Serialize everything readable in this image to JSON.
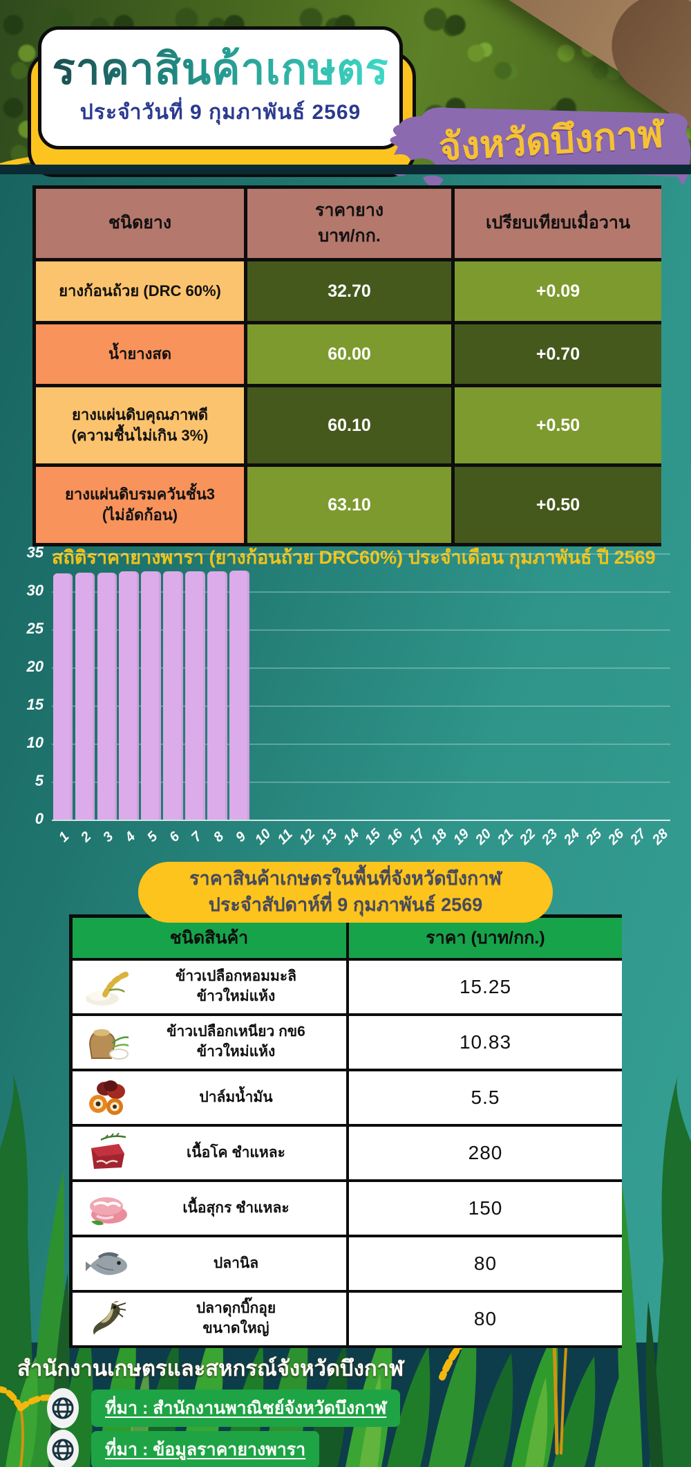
{
  "header": {
    "title": "ราคาสินค้าเกษตร",
    "subtitle": "ประจำวันที่ 9 กุมภาพันธ์ 2569",
    "province_banner": "จังหวัดบึงกาฬ"
  },
  "rubber_table": {
    "columns": [
      "ชนิดยาง",
      "ราคายาง\nบาท/กก.",
      "เปรียบเทียบเมื่อวาน"
    ],
    "rows": [
      {
        "type": "ยางก้อนถ้วย (DRC 60%)",
        "price": "32.70",
        "change": "+0.09"
      },
      {
        "type": "น้ำยางสด",
        "price": "60.00",
        "change": "+0.70"
      },
      {
        "type": "ยางแผ่นดิบคุณภาพดี\n(ความชื้นไม่เกิน 3%)",
        "price": "60.10",
        "change": "+0.50"
      },
      {
        "type": "ยางแผ่นดิบรมควันชั้น3\n(ไม่อัดก้อน)",
        "price": "63.10",
        "change": "+0.50"
      }
    ]
  },
  "chart_data": {
    "type": "bar",
    "title": "สถิติราคายางพารา (ยางก้อนถ้วย DRC60%) ประจำเดือน กุมภาพันธ์ ปี 2569",
    "categories": [
      1,
      2,
      3,
      4,
      5,
      6,
      7,
      8,
      9,
      10,
      11,
      12,
      13,
      14,
      15,
      16,
      17,
      18,
      19,
      20,
      21,
      22,
      23,
      24,
      25,
      26,
      27,
      28
    ],
    "values": [
      32.4,
      32.5,
      32.5,
      32.6,
      32.6,
      32.6,
      32.6,
      32.6,
      32.7
    ],
    "xlabel": "",
    "ylabel": "",
    "ylim": [
      0,
      35
    ],
    "yticks": [
      0,
      5,
      10,
      15,
      20,
      25,
      30,
      35
    ],
    "grid": true,
    "legend": false,
    "bar_color": "#dcabe9"
  },
  "weekly_box": {
    "line1": "ราคาสินค้าเกษตรในพื้นที่จังหวัดบึงกาฬ",
    "line2": "ประจำสัปดาห์ที่ 9 กุมภาพันธ์ 2569"
  },
  "product_table": {
    "columns": [
      "ชนิดสินค้า",
      "ราคา (บาท/กก.)"
    ],
    "rows": [
      {
        "icon": "jasmine-paddy-rice-image",
        "name": "ข้าวเปลือกหอมมะลิ\nข้าวใหม่แห้ง",
        "price": "15.25"
      },
      {
        "icon": "sticky-paddy-rice-image",
        "name": "ข้าวเปลือกเหนียว กข6\nข้าวใหม่แห้ง",
        "price": "10.83"
      },
      {
        "icon": "oil-palm-image",
        "name": "ปาล์มน้ำมัน",
        "price": "5.5"
      },
      {
        "icon": "beef-image",
        "name": "เนื้อโค ชำแหละ",
        "price": "280"
      },
      {
        "icon": "pork-image",
        "name": "เนื้อสุกร ชำแหละ",
        "price": "150"
      },
      {
        "icon": "tilapia-fish-image",
        "name": "ปลานิล",
        "price": "80"
      },
      {
        "icon": "catfish-image",
        "name": "ปลาดุกบิ๊กอุย\nขนาดใหญ่",
        "price": "80"
      }
    ]
  },
  "footer": {
    "agency": "สำนักงานเกษตรและสหกรณ์จังหวัดบึงกาฬ",
    "sources": [
      {
        "icon": "globe-icon",
        "label": "ที่มา : สำนักงานพาณิชย์จังหวัดบึงกาฬ"
      },
      {
        "icon": "globe-icon",
        "label": "ที่มา : ข้อมูลราคายางพารา"
      }
    ]
  },
  "colors": {
    "background_teal": "#2f948a",
    "accent_yellow": "#fdc420",
    "banner_purple": "#8b6ab0",
    "table_header_rose": "#b5786c",
    "row_orange_light": "#fbc36d",
    "row_orange_dark": "#f8935b",
    "cell_green_dark": "#45591d",
    "cell_green_olive": "#7d9a2e",
    "bar_plum": "#dcabe9",
    "product_header_green": "#17a34a",
    "source_pill_green": "#1ea444"
  }
}
